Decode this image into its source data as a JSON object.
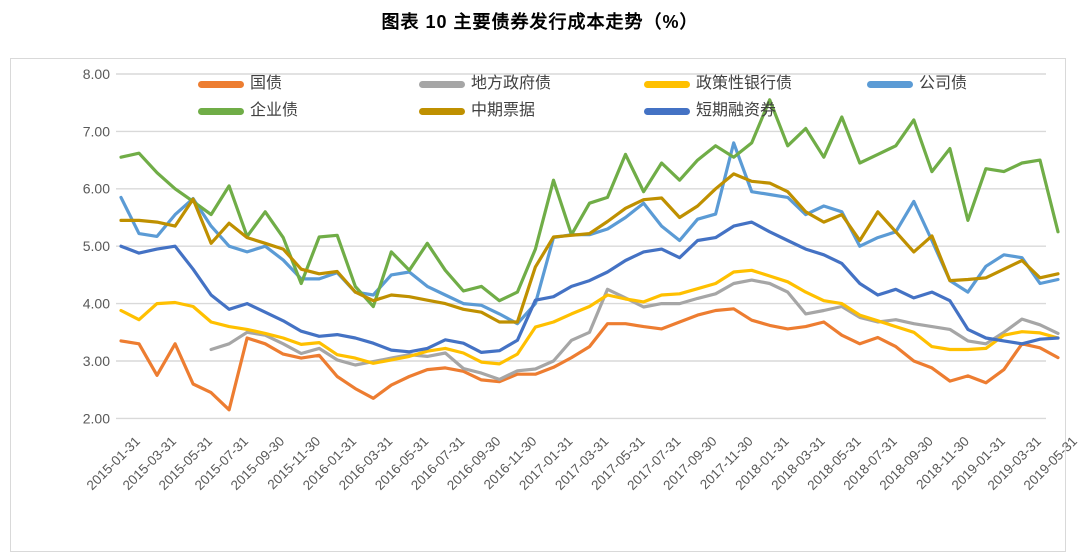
{
  "title": "图表 10 主要债券发行成本走势（%）",
  "chart_data": {
    "type": "line",
    "title": "图表 10 主要债券发行成本走势（%）",
    "grid": "horizontal",
    "legend_position": "top",
    "points_per_series": 53,
    "x_ticks_every": 2,
    "x_start": "2015-01",
    "x_end": "2019-05",
    "y_axis": {
      "min": 2,
      "max": 8,
      "step": 1,
      "tick_labels": [
        "8.00",
        "7.00",
        "6.00",
        "5.00",
        "4.00",
        "3.00",
        "2.00"
      ]
    },
    "x_tick_labels": [
      "2015-01-31",
      "2015-03-31",
      "2015-05-31",
      "2015-07-31",
      "2015-09-30",
      "2015-11-30",
      "2016-01-31",
      "2016-03-31",
      "2016-05-31",
      "2016-07-31",
      "2016-09-30",
      "2016-11-30",
      "2017-01-31",
      "2017-03-31",
      "2017-05-31",
      "2017-07-31",
      "2017-09-30",
      "2017-11-30",
      "2018-01-31",
      "2018-03-31",
      "2018-05-31",
      "2018-07-31",
      "2018-09-30",
      "2018-11-30",
      "2019-01-31",
      "2019-03-31",
      "2019-05-31"
    ],
    "legend_rows": [
      [
        "国债",
        "地方政府债",
        "政策性银行债",
        "公司债"
      ],
      [
        "企业债",
        "中期票据",
        "短期融资券"
      ]
    ],
    "series": [
      {
        "name": "国债",
        "color": "#ED7D31",
        "values": [
          3.35,
          3.3,
          2.75,
          3.3,
          2.6,
          2.45,
          2.15,
          3.4,
          3.3,
          3.12,
          3.05,
          3.1,
          2.73,
          2.52,
          2.35,
          2.58,
          2.73,
          2.85,
          2.88,
          2.82,
          2.67,
          2.64,
          2.77,
          2.77,
          2.89,
          3.06,
          3.25,
          3.65,
          3.65,
          3.6,
          3.56,
          3.68,
          3.8,
          3.88,
          3.91,
          3.71,
          3.62,
          3.56,
          3.6,
          3.68,
          3.45,
          3.3,
          3.41,
          3.25,
          3.0,
          2.88,
          2.65,
          2.74,
          2.62,
          2.85,
          3.3,
          3.23,
          3.06
        ]
      },
      {
        "name": "地方政府债",
        "color": "#A6A6A6",
        "values": [
          null,
          null,
          null,
          null,
          null,
          3.2,
          3.3,
          3.5,
          3.45,
          3.3,
          3.13,
          3.22,
          3.02,
          2.93,
          2.99,
          3.05,
          3.11,
          3.08,
          3.14,
          2.87,
          2.79,
          2.68,
          2.83,
          2.86,
          3.0,
          3.36,
          3.5,
          4.25,
          4.1,
          3.94,
          4.0,
          4.0,
          4.09,
          4.17,
          4.35,
          4.41,
          4.35,
          4.2,
          3.82,
          3.88,
          3.95,
          3.76,
          3.68,
          3.72,
          3.65,
          3.6,
          3.55,
          3.35,
          3.3,
          3.5,
          3.73,
          3.63,
          3.48
        ]
      },
      {
        "name": "政策性银行债",
        "color": "#FFC000",
        "values": [
          3.88,
          3.72,
          4.0,
          4.02,
          3.95,
          3.68,
          3.6,
          3.55,
          3.48,
          3.4,
          3.29,
          3.32,
          3.11,
          3.05,
          2.96,
          3.02,
          3.08,
          3.17,
          3.22,
          3.14,
          2.98,
          2.95,
          3.12,
          3.59,
          3.68,
          3.82,
          3.95,
          4.15,
          4.08,
          4.03,
          4.15,
          4.17,
          4.26,
          4.35,
          4.55,
          4.58,
          4.48,
          4.38,
          4.2,
          4.05,
          4.0,
          3.8,
          3.7,
          3.6,
          3.5,
          3.25,
          3.2,
          3.2,
          3.22,
          3.45,
          3.51,
          3.49,
          3.4
        ]
      },
      {
        "name": "公司债",
        "color": "#5B9BD5",
        "values": [
          5.85,
          5.22,
          5.17,
          5.55,
          5.83,
          5.35,
          5.0,
          4.9,
          5.0,
          4.76,
          4.43,
          4.43,
          4.54,
          4.2,
          4.15,
          4.5,
          4.55,
          4.3,
          4.15,
          4.0,
          3.97,
          3.82,
          3.65,
          4.0,
          5.15,
          5.2,
          5.2,
          5.3,
          5.5,
          5.75,
          5.35,
          5.1,
          5.47,
          5.56,
          6.8,
          5.95,
          5.9,
          5.85,
          5.55,
          5.7,
          5.6,
          5.0,
          5.15,
          5.25,
          5.78,
          5.1,
          4.4,
          4.2,
          4.65,
          4.85,
          4.8,
          4.35,
          4.42
        ]
      },
      {
        "name": "企业债",
        "color": "#70AD47",
        "values": [
          6.55,
          6.62,
          6.28,
          6.0,
          5.78,
          5.55,
          6.05,
          5.17,
          5.6,
          5.15,
          4.35,
          5.16,
          5.19,
          4.3,
          3.95,
          4.9,
          4.58,
          5.05,
          4.58,
          4.22,
          4.3,
          4.05,
          4.2,
          4.95,
          6.15,
          5.2,
          5.75,
          5.85,
          6.6,
          5.95,
          6.45,
          6.15,
          6.5,
          6.75,
          6.55,
          6.8,
          7.55,
          6.75,
          7.05,
          6.55,
          7.25,
          6.45,
          6.6,
          6.75,
          7.2,
          6.3,
          6.7,
          5.45,
          6.35,
          6.3,
          6.45,
          6.5,
          5.25
        ]
      },
      {
        "name": "中期票据",
        "color": "#BF9000",
        "values": [
          5.45,
          5.45,
          5.42,
          5.35,
          5.82,
          5.05,
          5.4,
          5.15,
          5.05,
          4.95,
          4.6,
          4.52,
          4.56,
          4.2,
          4.05,
          4.15,
          4.12,
          4.06,
          4.0,
          3.9,
          3.85,
          3.68,
          3.68,
          4.64,
          5.16,
          5.19,
          5.22,
          5.43,
          5.66,
          5.81,
          5.84,
          5.5,
          5.7,
          6.0,
          6.26,
          6.13,
          6.1,
          5.95,
          5.6,
          5.42,
          5.55,
          5.1,
          5.6,
          5.25,
          4.9,
          5.18,
          4.4,
          4.42,
          4.45,
          4.6,
          4.75,
          4.45,
          4.52
        ]
      },
      {
        "name": "短期融资券",
        "color": "#4472C4",
        "values": [
          5.0,
          4.88,
          4.95,
          5.0,
          4.6,
          4.15,
          3.9,
          4.0,
          3.85,
          3.7,
          3.52,
          3.43,
          3.46,
          3.4,
          3.31,
          3.19,
          3.16,
          3.22,
          3.37,
          3.31,
          3.15,
          3.18,
          3.36,
          4.06,
          4.12,
          4.3,
          4.4,
          4.55,
          4.75,
          4.9,
          4.95,
          4.8,
          5.1,
          5.15,
          5.35,
          5.42,
          5.25,
          5.1,
          4.95,
          4.85,
          4.7,
          4.35,
          4.15,
          4.25,
          4.1,
          4.2,
          4.05,
          3.55,
          3.4,
          3.35,
          3.3,
          3.38,
          3.4
        ]
      }
    ]
  }
}
